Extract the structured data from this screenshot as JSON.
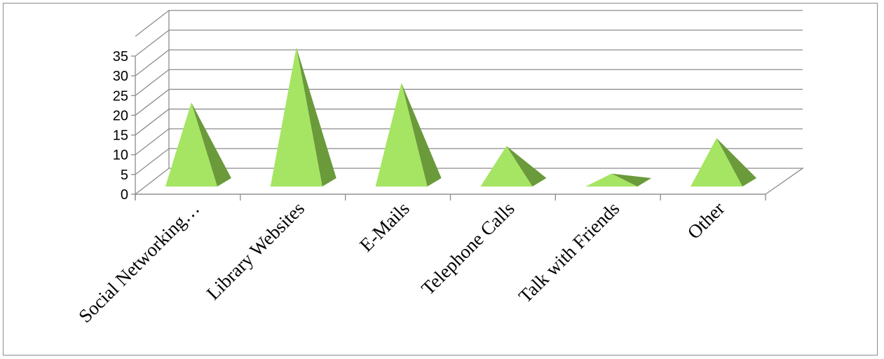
{
  "chart_data": {
    "type": "bar",
    "style": "3d-pyramid",
    "categories": [
      "Social Networking…",
      "Library Websites",
      "E-Mails",
      "Telephone Calls",
      "Talk with Friends",
      "Other"
    ],
    "values": [
      21,
      35,
      26,
      10,
      3,
      12
    ],
    "ylim": [
      0,
      35
    ],
    "yticks": [
      0,
      5,
      10,
      15,
      20,
      25,
      30,
      35
    ],
    "title": "",
    "xlabel": "",
    "ylabel": "",
    "grid": true,
    "legend": "none",
    "colors": {
      "front": "#a6e563",
      "side": "#6a9a3a",
      "grid": "#8c8c8c"
    }
  }
}
